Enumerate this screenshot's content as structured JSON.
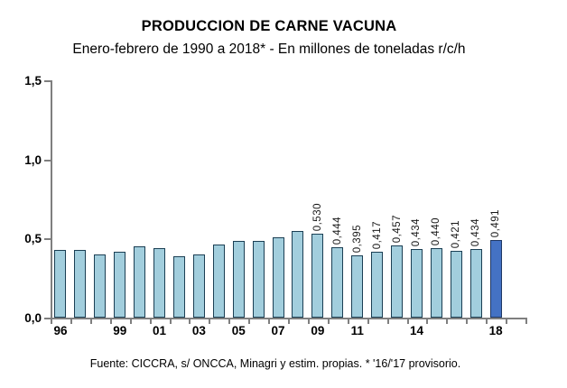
{
  "chart_data": {
    "type": "bar",
    "title": "PRODUCCION DE CARNE VACUNA",
    "subtitle": "Enero-febrero de 1990 a 2018* - En millones de toneladas r/c/h",
    "source_note": "Fuente: CICCRA, s/ ONCCA, Minagri y estim. propias. * '16/'17 provisorio.",
    "xlabel": "",
    "ylabel": "",
    "ylim": [
      0,
      1.5
    ],
    "yticks": [
      {
        "value": 0.0,
        "label": "0,0"
      },
      {
        "value": 0.5,
        "label": "0,5"
      },
      {
        "value": 1.0,
        "label": "1,0"
      },
      {
        "value": 1.5,
        "label": "1,5"
      }
    ],
    "grid": false,
    "legend": false,
    "bars": [
      {
        "year": 1996,
        "tick_label": "96",
        "value": 0.425,
        "data_label": "",
        "highlight": false
      },
      {
        "year": 1997,
        "tick_label": "",
        "value": 0.425,
        "data_label": "",
        "highlight": false
      },
      {
        "year": 1998,
        "tick_label": "",
        "value": 0.4,
        "data_label": "",
        "highlight": false
      },
      {
        "year": 1999,
        "tick_label": "99",
        "value": 0.415,
        "data_label": "",
        "highlight": false
      },
      {
        "year": 2000,
        "tick_label": "",
        "value": 0.45,
        "data_label": "",
        "highlight": false
      },
      {
        "year": 2001,
        "tick_label": "01",
        "value": 0.44,
        "data_label": "",
        "highlight": false
      },
      {
        "year": 2002,
        "tick_label": "",
        "value": 0.39,
        "data_label": "",
        "highlight": false
      },
      {
        "year": 2003,
        "tick_label": "03",
        "value": 0.4,
        "data_label": "",
        "highlight": false
      },
      {
        "year": 2004,
        "tick_label": "",
        "value": 0.462,
        "data_label": "",
        "highlight": false
      },
      {
        "year": 2005,
        "tick_label": "05",
        "value": 0.482,
        "data_label": "",
        "highlight": false
      },
      {
        "year": 2006,
        "tick_label": "",
        "value": 0.482,
        "data_label": "",
        "highlight": false
      },
      {
        "year": 2007,
        "tick_label": "07",
        "value": 0.505,
        "data_label": "",
        "highlight": false
      },
      {
        "year": 2008,
        "tick_label": "",
        "value": 0.545,
        "data_label": "",
        "highlight": false
      },
      {
        "year": 2009,
        "tick_label": "09",
        "value": 0.53,
        "data_label": "0,530",
        "highlight": false
      },
      {
        "year": 2010,
        "tick_label": "",
        "value": 0.444,
        "data_label": "0,444",
        "highlight": false
      },
      {
        "year": 2011,
        "tick_label": "11",
        "value": 0.395,
        "data_label": "0,395",
        "highlight": false
      },
      {
        "year": 2012,
        "tick_label": "",
        "value": 0.417,
        "data_label": "0,417",
        "highlight": false
      },
      {
        "year": 2013,
        "tick_label": "",
        "value": 0.457,
        "data_label": "0,457",
        "highlight": false
      },
      {
        "year": 2014,
        "tick_label": "14",
        "value": 0.434,
        "data_label": "0,434",
        "highlight": false
      },
      {
        "year": 2015,
        "tick_label": "",
        "value": 0.44,
        "data_label": "0,440",
        "highlight": false
      },
      {
        "year": 2016,
        "tick_label": "",
        "value": 0.421,
        "data_label": "0,421",
        "highlight": false
      },
      {
        "year": 2017,
        "tick_label": "",
        "value": 0.434,
        "data_label": "0,434",
        "highlight": false
      },
      {
        "year": 2018,
        "tick_label": "18",
        "value": 0.491,
        "data_label": "0,491",
        "highlight": true
      }
    ],
    "colors": {
      "bar_fill": "#a2cedd",
      "bar_border": "#1b3f54",
      "highlight_fill": "#4472c4",
      "highlight_border": "#1f3864",
      "axis": "#7f7f7f",
      "text": "#000000"
    }
  }
}
